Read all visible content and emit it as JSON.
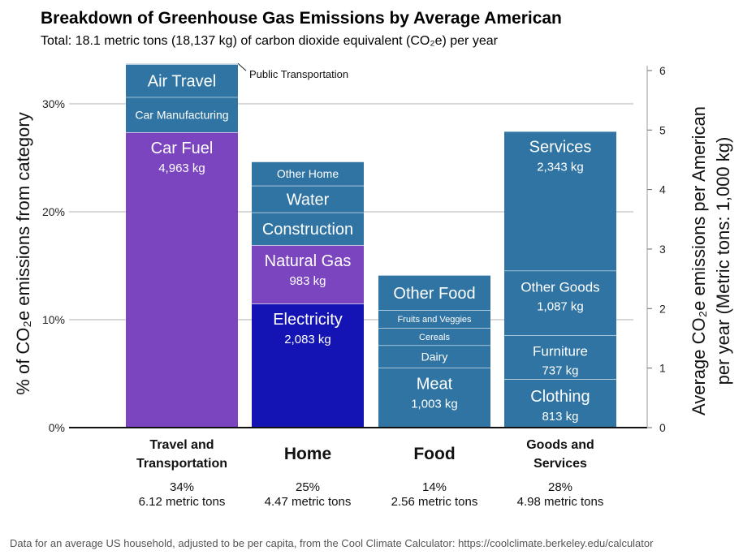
{
  "chart_data": {
    "type": "bar",
    "stacked": true,
    "title": "Breakdown of Greenhouse Gas Emissions by Average American",
    "subtitle": "Total: 18.1 metric tons (18,137 kg) of carbon dioxide equivalent (CO₂e) per year",
    "ylabel_left": "% of CO₂e emissions from category",
    "ylabel_right": "Average CO₂e emissions per American per year (Metric tons: 1,000 kg)",
    "ylabel_right_line1": "Average CO₂e emissions per American",
    "ylabel_right_line2": "per year (Metric tons: 1,000 kg)",
    "ylim_percent": [
      0,
      33
    ],
    "yticks_left": [
      "0%",
      "10%",
      "20%",
      "30%"
    ],
    "yticks_left_values": [
      0,
      10,
      20,
      30
    ],
    "yticks_right": [
      "0",
      "1",
      "2",
      "3",
      "4",
      "5",
      "6"
    ],
    "yticks_right_values": [
      0,
      1,
      2,
      3,
      4,
      5,
      6
    ],
    "grid": true,
    "footer": "Data for an average US household, adjusted to be per capita, from the Cool Climate Calculator: https://coolclimate.berkeley.edu/calculator",
    "colors": {
      "blue": "#2f74a2",
      "purple": "#7b45c0",
      "navy": "#1414b4"
    },
    "categories": [
      {
        "name_lines": [
          "Travel and",
          "Transportation"
        ],
        "big": false,
        "percent_label": "34%",
        "tons_label": "6.12 metric tons",
        "segments": [
          {
            "name": "Car Fuel",
            "value_kg": 4963,
            "value_label": "4,963 kg",
            "color": "#7b45c0",
            "text_pos": "top"
          },
          {
            "name": "Car Manufacturing",
            "value_kg": 590,
            "color": "#2f74a2",
            "small": true
          },
          {
            "name": "Air Travel",
            "value_kg": 550,
            "color": "#2f74a2"
          },
          {
            "name": "Public Transportation",
            "value_kg": 17,
            "color": "#2f74a2",
            "callout": true
          }
        ]
      },
      {
        "name_lines": [
          "Home"
        ],
        "big": true,
        "percent_label": "25%",
        "tons_label": "4.47 metric tons",
        "segments": [
          {
            "name": "Electricity",
            "value_kg": 2083,
            "value_label": "2,083 kg",
            "color": "#1414b4",
            "text_pos": "top"
          },
          {
            "name": "Natural Gas",
            "value_kg": 983,
            "value_label": "983 kg",
            "color": "#7b45c0",
            "text_pos": "top"
          },
          {
            "name": "Construction",
            "value_kg": 550,
            "color": "#2f74a2"
          },
          {
            "name": "Water",
            "value_kg": 450,
            "color": "#2f74a2"
          },
          {
            "name": "Other Home",
            "value_kg": 404,
            "color": "#2f74a2",
            "small": true
          }
        ]
      },
      {
        "name_lines": [
          "Food"
        ],
        "big": true,
        "percent_label": "14%",
        "tons_label": "2.56 metric tons",
        "segments": [
          {
            "name": "Meat",
            "value_kg": 1003,
            "value_label": "1,003 kg",
            "color": "#2f74a2",
            "text_pos": "top"
          },
          {
            "name": "Dairy",
            "value_kg": 380,
            "color": "#2f74a2",
            "small": true
          },
          {
            "name": "Cereals",
            "value_kg": 290,
            "color": "#2f74a2",
            "tiny": true
          },
          {
            "name": "Fruits and Veggies",
            "value_kg": 300,
            "color": "#2f74a2",
            "tiny": true
          },
          {
            "name": "Other Food",
            "value_kg": 590,
            "color": "#2f74a2"
          }
        ]
      },
      {
        "name_lines": [
          "Goods and",
          "Services"
        ],
        "big": false,
        "percent_label": "28%",
        "tons_label": "4.98 metric tons",
        "segments": [
          {
            "name": "Clothing",
            "value_kg": 813,
            "value_label": "813 kg",
            "color": "#2f74a2",
            "text_pos": "center"
          },
          {
            "name": "Furniture",
            "value_kg": 737,
            "value_label": "737 kg",
            "color": "#2f74a2",
            "text_pos": "center",
            "name_small": true
          },
          {
            "name": "Other Goods",
            "value_kg": 1087,
            "value_label": "1,087 kg",
            "color": "#2f74a2",
            "text_pos": "top",
            "name_small": true
          },
          {
            "name": "Services",
            "value_kg": 2343,
            "value_label": "2,343 kg",
            "color": "#2f74a2",
            "text_pos": "top"
          }
        ]
      }
    ]
  }
}
